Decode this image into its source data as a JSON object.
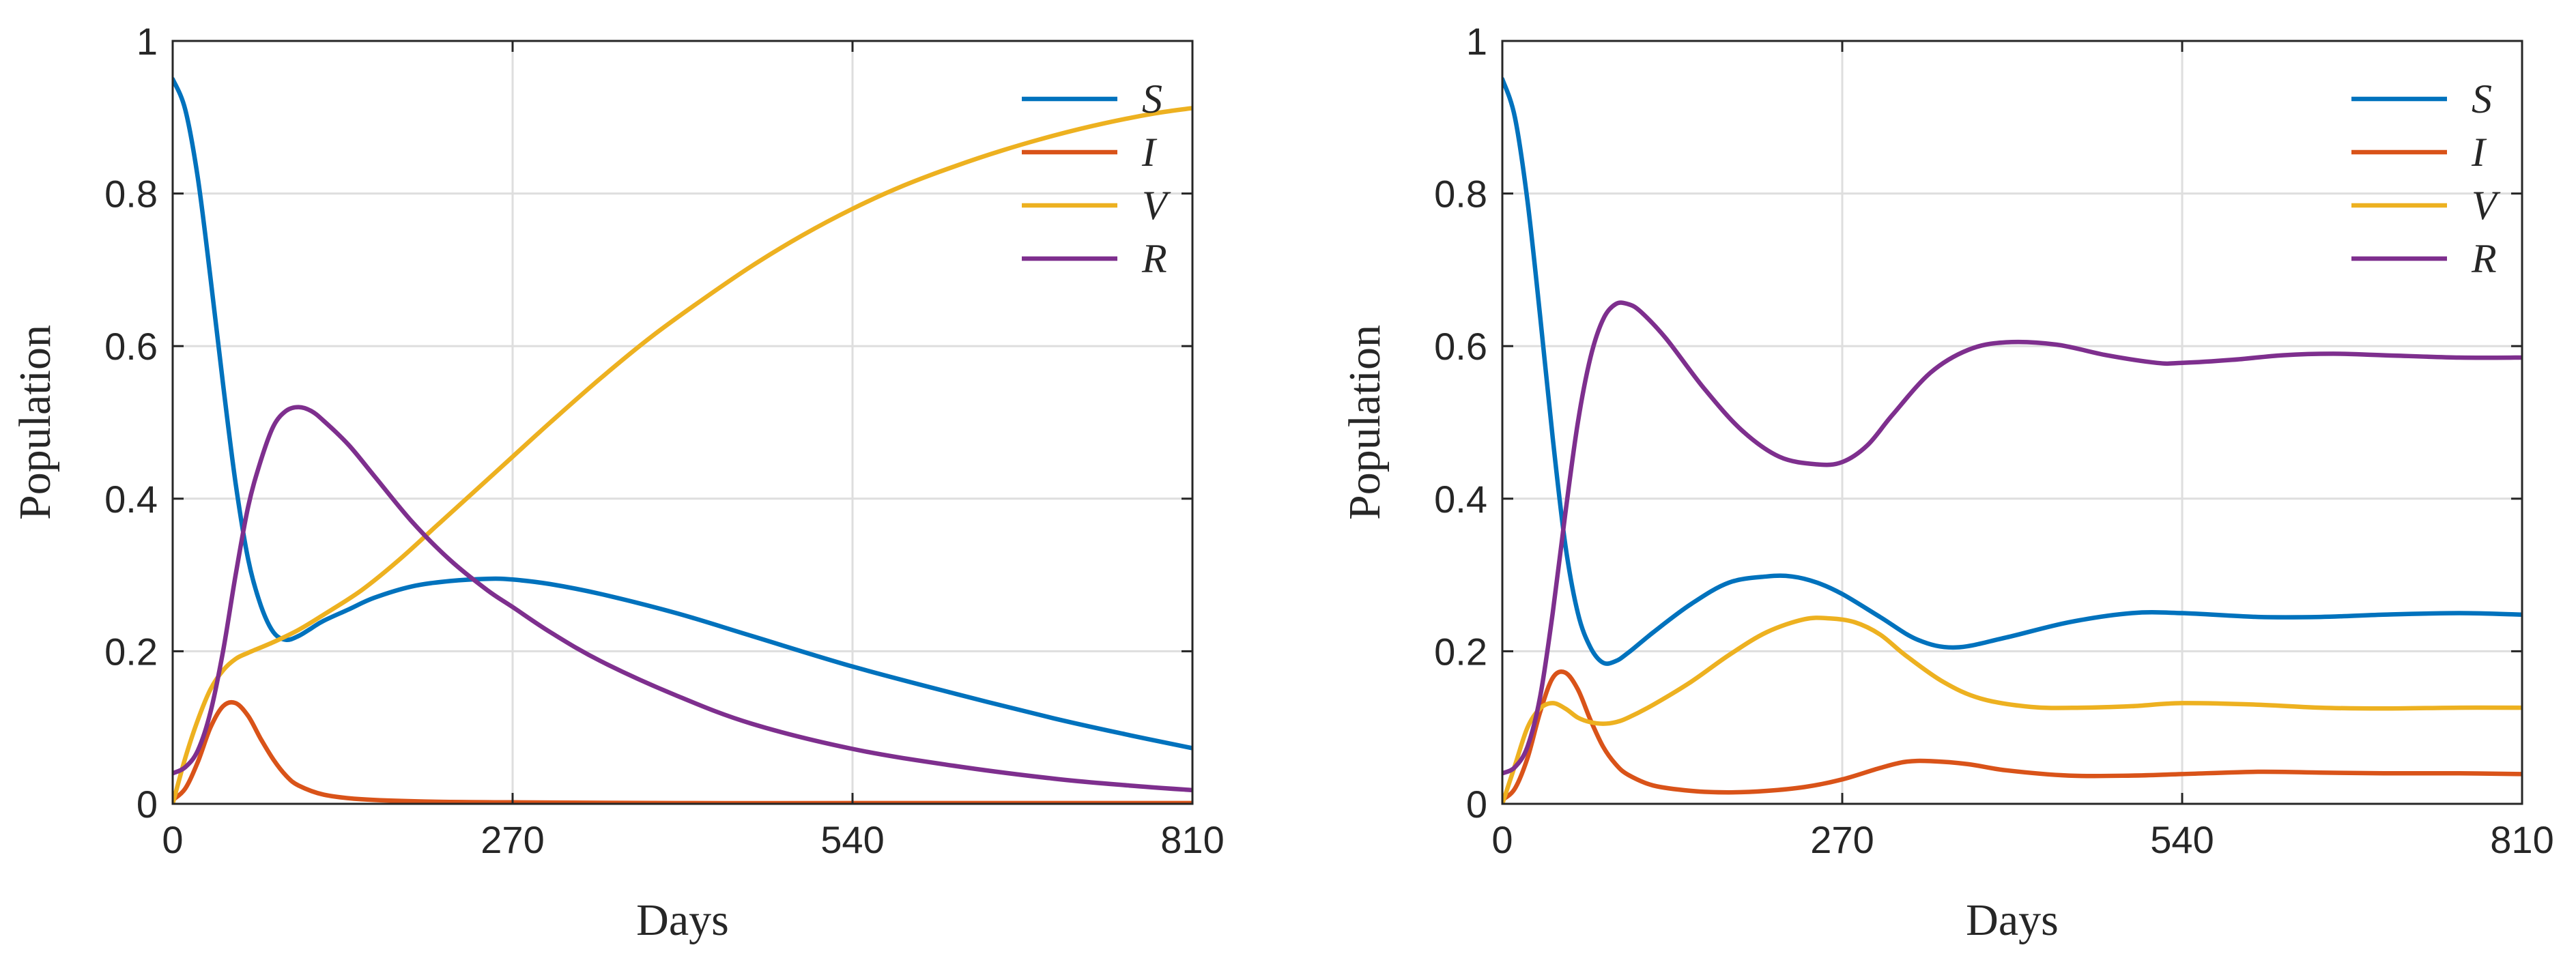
{
  "chart_data": [
    {
      "type": "line",
      "xlabel": "Days",
      "ylabel": "Population",
      "xlim": [
        0,
        810
      ],
      "ylim": [
        0,
        1
      ],
      "xticks": [
        "0",
        "270",
        "540",
        "810"
      ],
      "yticks": [
        "0",
        "0.2",
        "0.4",
        "0.6",
        "0.8",
        "1"
      ],
      "grid": true,
      "legend_position": "top-right",
      "series": [
        {
          "name": "S",
          "color": "#0072BD",
          "x": [
            0,
            10,
            20,
            30,
            40,
            50,
            60,
            70,
            80,
            90,
            100,
            110,
            120,
            140,
            160,
            190,
            220,
            250,
            270,
            300,
            340,
            400,
            460,
            540,
            620,
            700,
            760,
            810
          ],
          "y": [
            0.95,
            0.91,
            0.82,
            0.69,
            0.55,
            0.42,
            0.32,
            0.26,
            0.225,
            0.215,
            0.22,
            0.23,
            0.24,
            0.255,
            0.27,
            0.285,
            0.292,
            0.295,
            0.294,
            0.288,
            0.275,
            0.25,
            0.22,
            0.18,
            0.145,
            0.112,
            0.09,
            0.073
          ]
        },
        {
          "name": "I",
          "color": "#D95319",
          "x": [
            0,
            10,
            20,
            30,
            40,
            50,
            60,
            70,
            80,
            90,
            100,
            120,
            150,
            200,
            270,
            400,
            540,
            810
          ],
          "y": [
            0.005,
            0.02,
            0.055,
            0.1,
            0.128,
            0.132,
            0.115,
            0.085,
            0.058,
            0.037,
            0.024,
            0.012,
            0.006,
            0.003,
            0.002,
            0.001,
            0.001,
            0.001
          ]
        },
        {
          "name": "V",
          "color": "#EDB120",
          "x": [
            0,
            10,
            20,
            30,
            40,
            50,
            60,
            80,
            100,
            120,
            150,
            180,
            210,
            240,
            270,
            300,
            340,
            380,
            420,
            460,
            500,
            540,
            580,
            620,
            660,
            700,
            740,
            780,
            810
          ],
          "y": [
            0.0,
            0.06,
            0.11,
            0.15,
            0.175,
            0.19,
            0.198,
            0.212,
            0.228,
            0.248,
            0.28,
            0.32,
            0.365,
            0.41,
            0.455,
            0.5,
            0.558,
            0.612,
            0.66,
            0.705,
            0.745,
            0.78,
            0.81,
            0.835,
            0.857,
            0.876,
            0.892,
            0.905,
            0.912
          ]
        },
        {
          "name": "R",
          "color": "#7E2F8E",
          "x": [
            0,
            10,
            20,
            30,
            40,
            50,
            60,
            70,
            80,
            90,
            100,
            110,
            120,
            140,
            160,
            190,
            220,
            250,
            270,
            300,
            340,
            400,
            460,
            540,
            620,
            700,
            760,
            810
          ],
          "y": [
            0.04,
            0.048,
            0.07,
            0.12,
            0.2,
            0.3,
            0.39,
            0.45,
            0.495,
            0.515,
            0.52,
            0.515,
            0.502,
            0.47,
            0.43,
            0.37,
            0.32,
            0.28,
            0.258,
            0.225,
            0.187,
            0.142,
            0.105,
            0.072,
            0.05,
            0.033,
            0.024,
            0.018
          ]
        }
      ]
    },
    {
      "type": "line",
      "xlabel": "Days",
      "ylabel": "Population",
      "xlim": [
        0,
        810
      ],
      "ylim": [
        0,
        1
      ],
      "xticks": [
        "0",
        "270",
        "540",
        "810"
      ],
      "yticks": [
        "0",
        "0.2",
        "0.4",
        "0.6",
        "0.8",
        "1"
      ],
      "grid": true,
      "legend_position": "top-right",
      "series": [
        {
          "name": "S",
          "color": "#0072BD",
          "x": [
            0,
            10,
            20,
            30,
            40,
            50,
            60,
            70,
            80,
            90,
            100,
            120,
            150,
            180,
            210,
            230,
            250,
            270,
            300,
            330,
            360,
            400,
            450,
            500,
            540,
            600,
            650,
            700,
            760,
            810
          ],
          "y": [
            0.95,
            0.9,
            0.79,
            0.64,
            0.48,
            0.34,
            0.25,
            0.205,
            0.185,
            0.187,
            0.198,
            0.225,
            0.262,
            0.29,
            0.298,
            0.298,
            0.29,
            0.275,
            0.245,
            0.215,
            0.205,
            0.218,
            0.238,
            0.25,
            0.25,
            0.245,
            0.245,
            0.248,
            0.25,
            0.248
          ]
        },
        {
          "name": "I",
          "color": "#D95319",
          "x": [
            0,
            10,
            20,
            30,
            40,
            50,
            60,
            70,
            80,
            90,
            100,
            120,
            150,
            180,
            210,
            240,
            270,
            300,
            320,
            340,
            370,
            400,
            450,
            500,
            540,
            600,
            650,
            700,
            760,
            810
          ],
          "y": [
            0.005,
            0.02,
            0.06,
            0.12,
            0.165,
            0.172,
            0.15,
            0.11,
            0.075,
            0.052,
            0.038,
            0.024,
            0.017,
            0.015,
            0.017,
            0.022,
            0.032,
            0.047,
            0.055,
            0.056,
            0.052,
            0.044,
            0.037,
            0.037,
            0.039,
            0.042,
            0.041,
            0.04,
            0.04,
            0.039
          ]
        },
        {
          "name": "V",
          "color": "#EDB120",
          "x": [
            0,
            10,
            20,
            30,
            40,
            50,
            60,
            70,
            80,
            90,
            100,
            120,
            150,
            180,
            210,
            240,
            260,
            280,
            300,
            320,
            350,
            380,
            420,
            460,
            500,
            540,
            600,
            650,
            700,
            760,
            810
          ],
          "y": [
            0.0,
            0.05,
            0.1,
            0.125,
            0.132,
            0.125,
            0.113,
            0.107,
            0.105,
            0.107,
            0.113,
            0.13,
            0.16,
            0.195,
            0.225,
            0.242,
            0.243,
            0.238,
            0.222,
            0.195,
            0.16,
            0.138,
            0.127,
            0.126,
            0.128,
            0.132,
            0.13,
            0.126,
            0.125,
            0.126,
            0.126
          ]
        },
        {
          "name": "R",
          "color": "#7E2F8E",
          "x": [
            0,
            10,
            20,
            30,
            40,
            50,
            60,
            70,
            80,
            90,
            100,
            110,
            130,
            160,
            190,
            220,
            250,
            270,
            290,
            310,
            340,
            370,
            400,
            440,
            480,
            520,
            540,
            580,
            620,
            660,
            700,
            760,
            810
          ],
          "y": [
            0.04,
            0.048,
            0.075,
            0.14,
            0.25,
            0.38,
            0.5,
            0.585,
            0.635,
            0.655,
            0.655,
            0.645,
            0.61,
            0.545,
            0.49,
            0.455,
            0.445,
            0.448,
            0.47,
            0.51,
            0.565,
            0.595,
            0.605,
            0.602,
            0.588,
            0.578,
            0.578,
            0.582,
            0.588,
            0.59,
            0.588,
            0.585,
            0.585
          ]
        }
      ]
    }
  ]
}
